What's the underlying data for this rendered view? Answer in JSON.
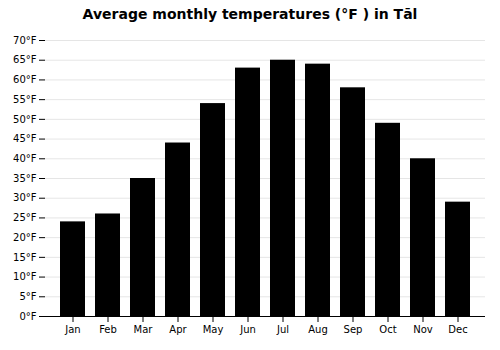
{
  "chart_data": {
    "type": "bar",
    "title": "Average monthly temperatures (°F ) in Tāl",
    "categories": [
      "Jan",
      "Feb",
      "Mar",
      "Apr",
      "May",
      "Jun",
      "Jul",
      "Aug",
      "Sep",
      "Oct",
      "Nov",
      "Dec"
    ],
    "values": [
      24,
      26,
      35,
      44,
      54,
      63,
      65,
      64,
      58,
      49,
      40,
      29
    ],
    "ylim": [
      0,
      70
    ],
    "yticks": [
      {
        "value": 0,
        "label": "0°F"
      },
      {
        "value": 5,
        "label": "5°F"
      },
      {
        "value": 10,
        "label": "10°F"
      },
      {
        "value": 15,
        "label": "15°F"
      },
      {
        "value": 20,
        "label": "20°F"
      },
      {
        "value": 25,
        "label": "25°F"
      },
      {
        "value": 30,
        "label": "30°F"
      },
      {
        "value": 35,
        "label": "35°F"
      },
      {
        "value": 40,
        "label": "40°F"
      },
      {
        "value": 45,
        "label": "45°F"
      },
      {
        "value": 50,
        "label": "50°F"
      },
      {
        "value": 55,
        "label": "55°F"
      },
      {
        "value": 60,
        "label": "60°F"
      },
      {
        "value": 65,
        "label": "65°F"
      },
      {
        "value": 70,
        "label": "70°F"
      }
    ],
    "grid": true
  }
}
